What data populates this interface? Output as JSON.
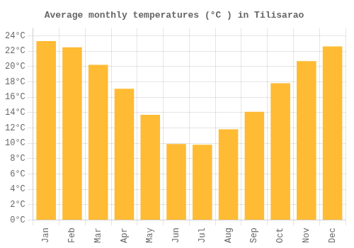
{
  "chart_data": {
    "type": "bar",
    "title": "Average monthly temperatures (°C ) in Tilisarao",
    "categories": [
      "Jan",
      "Feb",
      "Mar",
      "Apr",
      "May",
      "Jun",
      "Jul",
      "Aug",
      "Sep",
      "Oct",
      "Nov",
      "Dec"
    ],
    "values": [
      23.3,
      22.5,
      20.2,
      17.1,
      13.7,
      9.9,
      9.8,
      11.8,
      14.1,
      17.8,
      20.7,
      22.6
    ],
    "color": "#FFBB33",
    "ylim": [
      0,
      25
    ],
    "yticks": [
      {
        "value": 0,
        "label": "0°C"
      },
      {
        "value": 2,
        "label": "2°C"
      },
      {
        "value": 4,
        "label": "4°C"
      },
      {
        "value": 6,
        "label": "6°C"
      },
      {
        "value": 8,
        "label": "8°C"
      },
      {
        "value": 10,
        "label": "10°C"
      },
      {
        "value": 12,
        "label": "12°C"
      },
      {
        "value": 14,
        "label": "14°C"
      },
      {
        "value": 16,
        "label": "16°C"
      },
      {
        "value": 18,
        "label": "18°C"
      },
      {
        "value": 20,
        "label": "20°C"
      },
      {
        "value": 22,
        "label": "22°C"
      },
      {
        "value": 24,
        "label": "24°C"
      }
    ],
    "grid": true
  }
}
